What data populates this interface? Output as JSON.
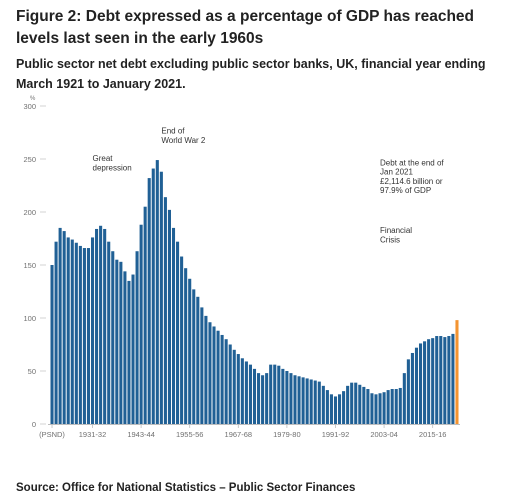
{
  "header": {
    "title": "Figure 2: Debt expressed as a percentage of GDP has reached levels last seen in the early 1960s",
    "subtitle": "Public sector net debt excluding public sector banks, UK, financial year ending March 1921 to January 2021."
  },
  "footer": {
    "source": "Source: Office for National Statistics – Public Sector Finances"
  },
  "chart_data": {
    "type": "bar",
    "unit_label": "%",
    "ylim": [
      0,
      300
    ],
    "yticks": [
      0,
      50,
      100,
      150,
      200,
      250,
      300
    ],
    "grid": false,
    "x_tick_labels": [
      {
        "index": 0,
        "label": "(PSND)"
      },
      {
        "index": 10,
        "label": "1931-32"
      },
      {
        "index": 22,
        "label": "1943-44"
      },
      {
        "index": 34,
        "label": "1955-56"
      },
      {
        "index": 46,
        "label": "1967-68"
      },
      {
        "index": 58,
        "label": "1979-80"
      },
      {
        "index": 70,
        "label": "1991-92"
      },
      {
        "index": 82,
        "label": "2003-04"
      },
      {
        "index": 94,
        "label": "2015-16"
      }
    ],
    "values": [
      150,
      172,
      185,
      182,
      176,
      174,
      171,
      168,
      166,
      166,
      176,
      184,
      187,
      184,
      172,
      163,
      155,
      153,
      144,
      135,
      141,
      163,
      188,
      205,
      232,
      241,
      249,
      238,
      214,
      202,
      185,
      172,
      158,
      147,
      137,
      127,
      120,
      110,
      102,
      96,
      92,
      88,
      84,
      80,
      75,
      70,
      66,
      62,
      59,
      56,
      52,
      48,
      46,
      48,
      56,
      56,
      55,
      52,
      50,
      48,
      46,
      45,
      44,
      43,
      42,
      41,
      40,
      36,
      32,
      28,
      26,
      28,
      31,
      36,
      39,
      39,
      37,
      35,
      33,
      29,
      28,
      29,
      30,
      32,
      33,
      33,
      34,
      48,
      61,
      67,
      72,
      76,
      78,
      80,
      81,
      83,
      83,
      82,
      83,
      85,
      98
    ],
    "highlight_index": 100,
    "bar_color": "#206095",
    "highlight_color": "#f39431",
    "annotations": [
      {
        "text": [
          "Great",
          "depression"
        ],
        "at_index": 10,
        "value": 248
      },
      {
        "text": [
          "End of",
          "World War 2"
        ],
        "at_index": 27,
        "value": 274
      },
      {
        "text": [
          "Debt at the end of",
          "Jan 2021",
          "£2,114.6 billion or",
          "97.9% of GDP"
        ],
        "at_index": 81,
        "value": 244
      },
      {
        "text": [
          "Financial",
          "Crisis"
        ],
        "at_index": 81,
        "value": 180
      }
    ]
  }
}
